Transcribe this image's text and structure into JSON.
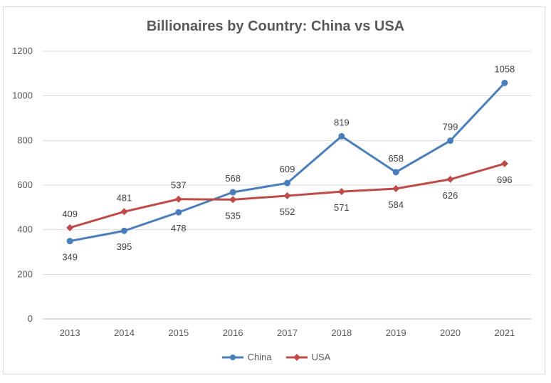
{
  "chart_data": {
    "type": "line",
    "title": "Billionaires by Country: China vs USA",
    "xlabel": "",
    "ylabel": "",
    "ylim": [
      0,
      1200
    ],
    "yticks": [
      0,
      200,
      400,
      600,
      800,
      1000,
      1200
    ],
    "categories": [
      "2013",
      "2014",
      "2015",
      "2016",
      "2017",
      "2018",
      "2019",
      "2020",
      "2021"
    ],
    "grid": true,
    "legend": "bottom",
    "series": [
      {
        "name": "China",
        "color": "#4a7ebb",
        "marker": "circle",
        "values": [
          349,
          395,
          478,
          568,
          609,
          819,
          658,
          799,
          1058
        ],
        "label_position": [
          "below",
          "below",
          "below",
          "above",
          "above",
          "above",
          "above",
          "above",
          "above"
        ]
      },
      {
        "name": "USA",
        "color": "#be4b48",
        "marker": "diamond",
        "values": [
          409,
          481,
          537,
          535,
          552,
          571,
          584,
          626,
          696
        ],
        "label_position": [
          "above",
          "above",
          "above",
          "below",
          "below",
          "below",
          "below",
          "below",
          "below"
        ]
      }
    ]
  }
}
